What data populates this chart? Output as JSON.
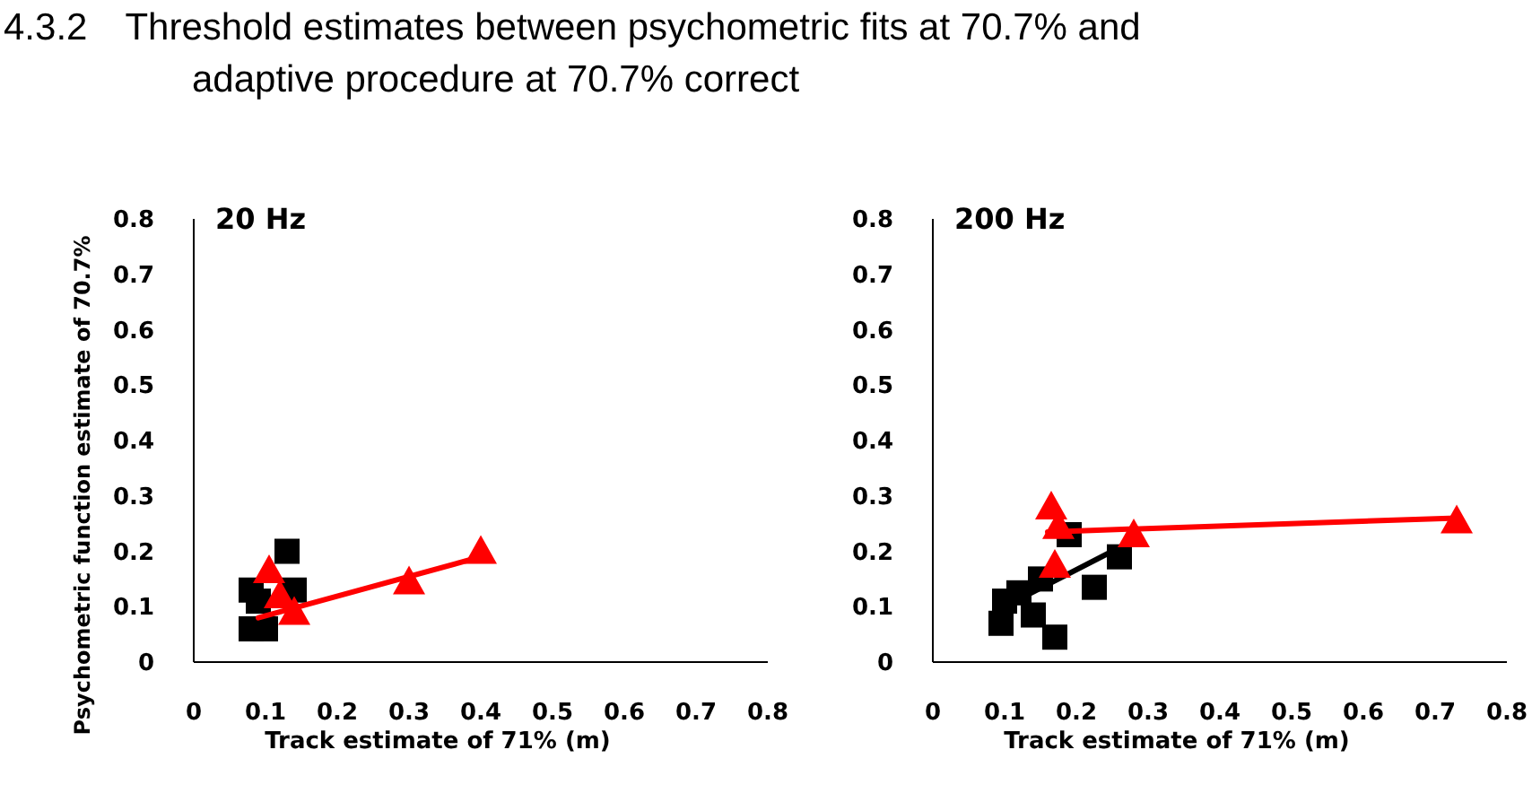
{
  "chart_data": [
    {
      "type": "scatter",
      "title": "20 Hz",
      "xlabel": "Track estimate of 71% (m)",
      "ylabel": "Psychometric function estimate of 70.7%",
      "annotations": [
        "4.3.2 Threshold estimates between psychometric fits at 70.7% and adaptive procedure at 70.7% correct"
      ],
      "xlim": [
        0,
        0.8
      ],
      "ylim": [
        0,
        0.8
      ],
      "xticks": [
        0,
        0.1,
        0.2,
        0.3,
        0.4,
        0.5,
        0.6,
        0.7,
        0.8
      ],
      "yticks": [
        0,
        0.1,
        0.2,
        0.3,
        0.4,
        0.5,
        0.6,
        0.7,
        0.8
      ],
      "grid": false,
      "series": [
        {
          "marker": "square",
          "color": "#000000",
          "x": [
            0.08,
            0.1,
            0.08,
            0.09,
            0.13,
            0.14
          ],
          "values": [
            0.06,
            0.06,
            0.13,
            0.11,
            0.2,
            0.13
          ]
        },
        {
          "marker": "triangle",
          "color": "#ff0000",
          "x": [
            0.105,
            0.14,
            0.12,
            0.3,
            0.4
          ],
          "values": [
            0.165,
            0.09,
            0.12,
            0.145,
            0.2
          ]
        },
        {
          "type": "line",
          "marker": "none",
          "color": "#ff0000",
          "x": [
            0.09,
            0.4
          ],
          "values": [
            0.08,
            0.19
          ]
        }
      ]
    },
    {
      "type": "scatter",
      "title": "200 Hz",
      "xlabel": "Track estimate of 71% (m)",
      "xlim": [
        0,
        0.8
      ],
      "ylim": [
        0,
        0.8
      ],
      "xticks": [
        0,
        0.1,
        0.2,
        0.3,
        0.4,
        0.5,
        0.6,
        0.7,
        0.8
      ],
      "yticks": [
        0,
        0.1,
        0.2,
        0.3,
        0.4,
        0.5,
        0.6,
        0.7,
        0.8
      ],
      "grid": false,
      "series": [
        {
          "marker": "square",
          "color": "#000000",
          "x": [
            0.1,
            0.095,
            0.17,
            0.225,
            0.26,
            0.15,
            0.19,
            0.14,
            0.12
          ],
          "values": [
            0.11,
            0.07,
            0.045,
            0.135,
            0.19,
            0.15,
            0.23,
            0.085,
            0.125
          ]
        },
        {
          "type": "line",
          "marker": "none",
          "color": "#000000",
          "x": [
            0.13,
            0.25
          ],
          "values": [
            0.12,
            0.2
          ]
        },
        {
          "marker": "triangle",
          "color": "#ff0000",
          "x": [
            0.165,
            0.175,
            0.17,
            0.28,
            0.73
          ],
          "values": [
            0.28,
            0.245,
            0.175,
            0.23,
            0.255
          ]
        },
        {
          "type": "line",
          "marker": "none",
          "color": "#ff0000",
          "x": [
            0.16,
            0.73
          ],
          "values": [
            0.235,
            0.26
          ]
        }
      ]
    }
  ]
}
